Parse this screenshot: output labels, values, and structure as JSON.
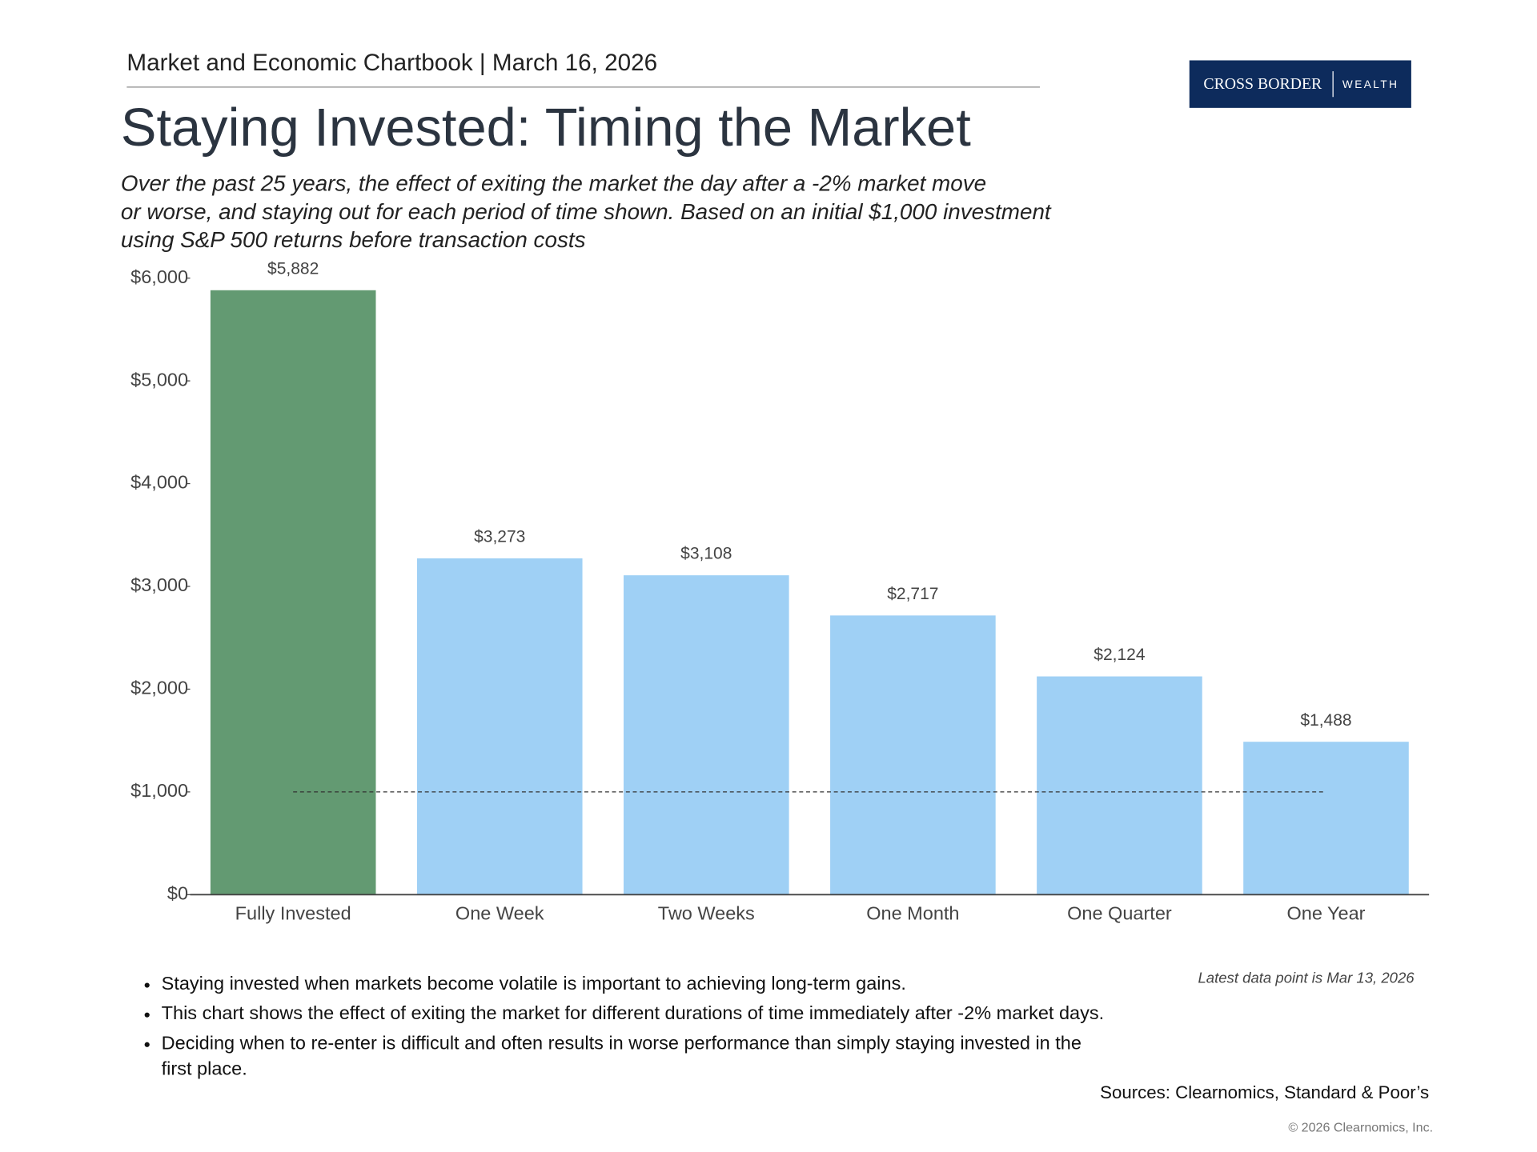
{
  "header": {
    "text": "Market and Economic Chartbook | March 16, 2026"
  },
  "logo": {
    "name": "CROSS BORDER",
    "tag": "WEALTH"
  },
  "chart_data": {
    "type": "bar",
    "title": "Staying Invested: Timing the Market",
    "subtitle": [
      "Over the past 25 years, the effect of exiting the market the day after a -2% market move",
      "or worse, and staying out for each period of time shown. Based on an initial $1,000 investment",
      "using S&P 500 returns before transaction costs"
    ],
    "categories": [
      "Fully Invested",
      "One Week",
      "Two Weeks",
      "One Month",
      "One Quarter",
      "One Year"
    ],
    "values": [
      5882,
      3273,
      3108,
      2717,
      2124,
      1488
    ],
    "value_labels": [
      "$5,882",
      "$3,273",
      "$3,108",
      "$2,717",
      "$2,124",
      "$1,488"
    ],
    "colors": [
      "#639a72",
      "#9fd0f5",
      "#9fd0f5",
      "#9fd0f5",
      "#9fd0f5",
      "#9fd0f5"
    ],
    "ylim": [
      0,
      6000
    ],
    "yticks": [
      {
        "value": 0,
        "label": "$0"
      },
      {
        "value": 1000,
        "label": "$1,000"
      },
      {
        "value": 2000,
        "label": "$2,000"
      },
      {
        "value": 3000,
        "label": "$3,000"
      },
      {
        "value": 4000,
        "label": "$4,000"
      },
      {
        "value": 5000,
        "label": "$5,000"
      },
      {
        "value": 6000,
        "label": "$6,000"
      }
    ],
    "reference_line": 1000,
    "grid": false
  },
  "notes": {
    "bullets": [
      "Staying invested when markets become volatile is important to achieving long-term gains.",
      "This chart shows the effect of exiting the market for different durations of time immediately after -2% market days.",
      "Deciding when to re-enter is difficult and often results in worse performance than simply staying invested in the first place."
    ],
    "latest": "Latest data point is Mar 13, 2026",
    "sources": "Sources: Clearnomics, Standard & Poor’s",
    "copyright": "© 2026 Clearnomics, Inc."
  }
}
